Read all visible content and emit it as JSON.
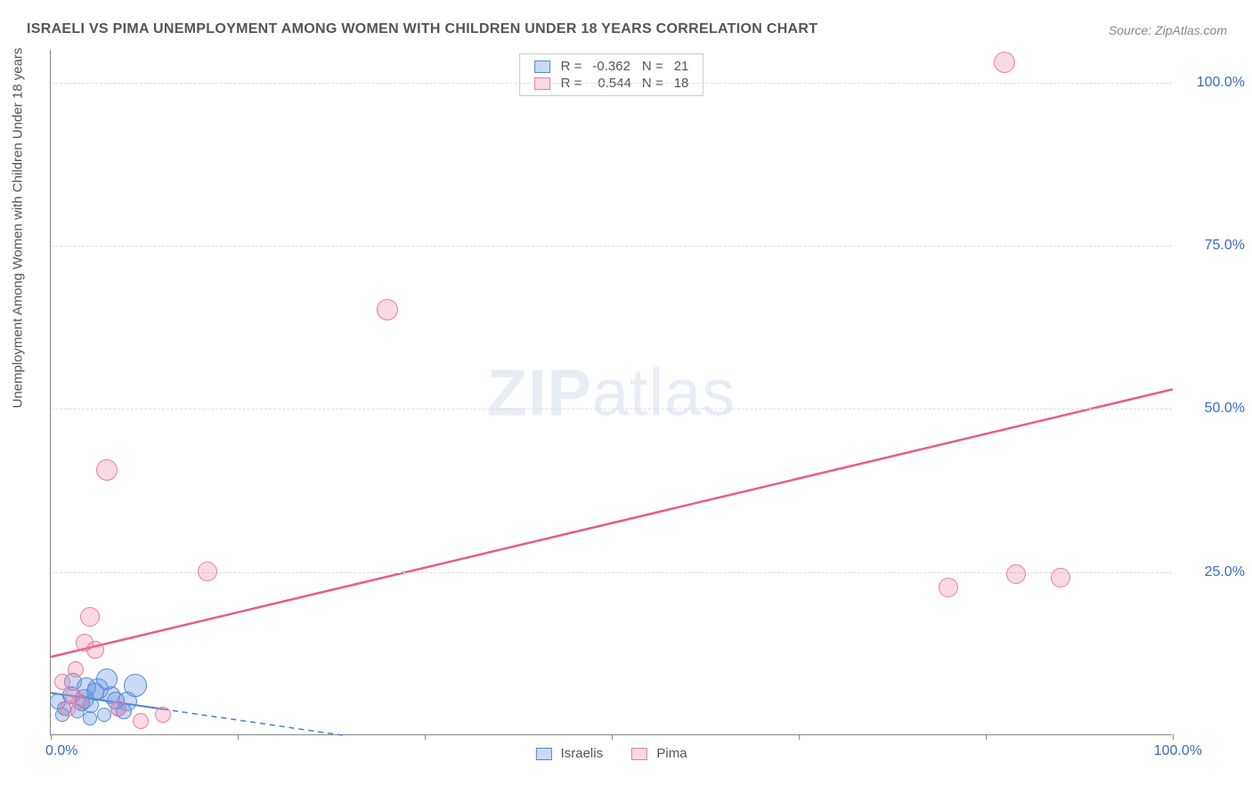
{
  "title": "ISRAELI VS PIMA UNEMPLOYMENT AMONG WOMEN WITH CHILDREN UNDER 18 YEARS CORRELATION CHART",
  "source": "Source: ZipAtlas.com",
  "ylabel": "Unemployment Among Women with Children Under 18 years",
  "watermark_bold": "ZIP",
  "watermark_rest": "atlas",
  "chart": {
    "type": "scatter",
    "xlim": [
      0,
      100
    ],
    "ylim": [
      0,
      105
    ],
    "yticks": [
      25,
      50,
      75,
      100
    ],
    "ytick_labels": [
      "25.0%",
      "50.0%",
      "75.0%",
      "100.0%"
    ],
    "xticks": [
      0,
      16.67,
      33.33,
      50,
      66.67,
      83.33,
      100
    ],
    "xlab_left": "0.0%",
    "xlab_right": "100.0%",
    "grid_color": "#dddddd",
    "background": "#ffffff",
    "series": [
      {
        "name": "Israelis",
        "fill": "rgba(100,150,230,0.35)",
        "stroke": "#5a8ad6",
        "R": "-0.362",
        "N": "21",
        "trend": {
          "x1": 0,
          "y1": 6.5,
          "x2": 26,
          "y2": 0,
          "solid_until_x": 10,
          "color": "#4a7ecf",
          "width": 2
        },
        "points": [
          {
            "x": 0.6,
            "y": 5.0,
            "r": 9
          },
          {
            "x": 1.2,
            "y": 4.0,
            "r": 8
          },
          {
            "x": 1.8,
            "y": 6.0,
            "r": 10
          },
          {
            "x": 2.4,
            "y": 3.5,
            "r": 8
          },
          {
            "x": 3.0,
            "y": 5.5,
            "r": 11
          },
          {
            "x": 3.6,
            "y": 4.5,
            "r": 9
          },
          {
            "x": 4.2,
            "y": 7.0,
            "r": 12
          },
          {
            "x": 4.8,
            "y": 3.0,
            "r": 8
          },
          {
            "x": 5.4,
            "y": 6.0,
            "r": 10
          },
          {
            "x": 6.0,
            "y": 4.0,
            "r": 9
          },
          {
            "x": 6.8,
            "y": 5.0,
            "r": 11
          },
          {
            "x": 7.5,
            "y": 7.5,
            "r": 13
          },
          {
            "x": 2.0,
            "y": 8.0,
            "r": 10
          },
          {
            "x": 3.5,
            "y": 2.5,
            "r": 8
          },
          {
            "x": 5.0,
            "y": 8.5,
            "r": 12
          },
          {
            "x": 1.0,
            "y": 3.0,
            "r": 8
          },
          {
            "x": 4.0,
            "y": 6.5,
            "r": 10
          },
          {
            "x": 6.5,
            "y": 3.5,
            "r": 9
          },
          {
            "x": 2.8,
            "y": 4.8,
            "r": 9
          },
          {
            "x": 5.8,
            "y": 5.2,
            "r": 10
          },
          {
            "x": 3.2,
            "y": 7.2,
            "r": 11
          }
        ]
      },
      {
        "name": "Pima",
        "fill": "rgba(240,130,165,0.30)",
        "stroke": "#e87fa3",
        "R": "0.544",
        "N": "18",
        "trend": {
          "x1": 0,
          "y1": 12,
          "x2": 100,
          "y2": 53,
          "color": "#e85b8c",
          "width": 2.5
        },
        "points": [
          {
            "x": 1.5,
            "y": 4.0,
            "r": 9
          },
          {
            "x": 2.0,
            "y": 6.0,
            "r": 9
          },
          {
            "x": 3.0,
            "y": 14.0,
            "r": 10
          },
          {
            "x": 4.0,
            "y": 13.0,
            "r": 10
          },
          {
            "x": 3.5,
            "y": 18.0,
            "r": 11
          },
          {
            "x": 2.5,
            "y": 5.0,
            "r": 9
          },
          {
            "x": 5.0,
            "y": 40.5,
            "r": 12
          },
          {
            "x": 8.0,
            "y": 2.0,
            "r": 9
          },
          {
            "x": 10.0,
            "y": 3.0,
            "r": 9
          },
          {
            "x": 14.0,
            "y": 25.0,
            "r": 11
          },
          {
            "x": 30.0,
            "y": 65.0,
            "r": 12
          },
          {
            "x": 80.0,
            "y": 22.5,
            "r": 11
          },
          {
            "x": 86.0,
            "y": 24.5,
            "r": 11
          },
          {
            "x": 90.0,
            "y": 24.0,
            "r": 11
          },
          {
            "x": 85.0,
            "y": 103.0,
            "r": 12
          },
          {
            "x": 1.0,
            "y": 8.0,
            "r": 9
          },
          {
            "x": 2.2,
            "y": 10.0,
            "r": 9
          },
          {
            "x": 6.0,
            "y": 4.0,
            "r": 9
          }
        ]
      }
    ],
    "legend_top_labels": {
      "R": "R =",
      "N": "N ="
    },
    "legend_bottom": [
      "Israelis",
      "Pima"
    ]
  }
}
